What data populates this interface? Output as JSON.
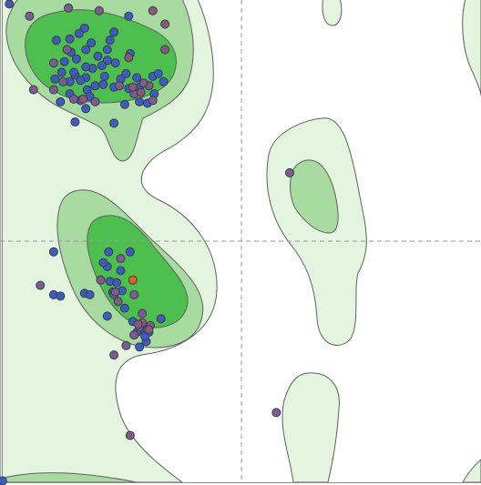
{
  "chart_data": {
    "type": "scatter",
    "title": "",
    "xlabel": "",
    "ylabel": "",
    "xlim": [
      -180,
      180
    ],
    "ylim": [
      -180,
      180
    ],
    "grid": false,
    "reference_lines": {
      "x": 0,
      "y": 0
    },
    "colors": {
      "background": "#ffffff",
      "allowed_region": "#e3f4df",
      "favoured_region": "#a7dba0",
      "core_region": "#4cbf4f",
      "contour_line": "#606060",
      "reference_line": "#9a9a9a",
      "point_blue": "#3c5dbf",
      "point_purple": "#7d5c8f",
      "point_mauve": "#8a5878",
      "point_orange": "#e0602a"
    },
    "series": [
      {
        "color": "point_blue",
        "points": [
          [
            -173,
            177
          ],
          [
            -84,
            168
          ],
          [
            -117,
            159
          ],
          [
            -95,
            156
          ],
          [
            -121,
            155
          ],
          [
            -128,
            151
          ],
          [
            -112,
            148
          ],
          [
            -138,
            150
          ],
          [
            -127,
            141
          ],
          [
            -116,
            143
          ],
          [
            -107,
            138
          ],
          [
            -111,
            129
          ],
          [
            -123,
            136
          ],
          [
            -100,
            135
          ],
          [
            -104,
            131
          ],
          [
            -116,
            130
          ],
          [
            -132,
            134
          ],
          [
            -124,
            124
          ],
          [
            -116,
            122
          ],
          [
            -102,
            123
          ],
          [
            -103,
            117
          ],
          [
            -120,
            120
          ],
          [
            -128,
            119
          ],
          [
            -139,
            121
          ],
          [
            -134,
            126
          ],
          [
            -115,
            113
          ],
          [
            -109,
            116
          ],
          [
            -95,
            115
          ],
          [
            -90,
            121
          ],
          [
            -94,
            133
          ],
          [
            -83,
            140
          ],
          [
            -86,
            125
          ],
          [
            -84,
            114
          ],
          [
            -76,
            115
          ],
          [
            -78,
            122
          ],
          [
            -69,
            116
          ],
          [
            -66,
            123
          ],
          [
            -62,
            125
          ],
          [
            -58,
            119
          ],
          [
            -70,
            103
          ],
          [
            -87,
            102
          ],
          [
            -113,
            108
          ],
          [
            -120,
            105
          ],
          [
            -116,
            99
          ],
          [
            -124,
            89
          ],
          [
            -95,
            88
          ],
          [
            -135,
            104
          ],
          [
            -128,
            110
          ],
          [
            -125,
            126
          ],
          [
            -100,
            143
          ],
          [
            -98,
            150
          ],
          [
            -140,
            -40
          ],
          [
            -135,
            -41
          ],
          [
            -100,
            -19
          ],
          [
            -98,
            -30
          ],
          [
            -103,
            -16
          ],
          [
            -90,
            -22
          ],
          [
            -93,
            -31
          ],
          [
            -89,
            -37
          ],
          [
            -87,
            -50
          ],
          [
            -96,
            -38
          ],
          [
            -100,
            -56
          ],
          [
            -69,
            -68
          ],
          [
            -81,
            -60
          ],
          [
            -71,
            -75
          ],
          [
            -80,
            -70
          ],
          [
            -74,
            -66
          ],
          [
            -72,
            -71
          ],
          [
            -76,
            -79
          ],
          [
            -78,
            -68
          ],
          [
            -117,
            -39
          ],
          [
            -140,
            -8
          ],
          [
            -99,
            -8
          ],
          [
            -83,
            -8
          ],
          [
            -113,
            -40
          ],
          [
            -60,
            -58
          ],
          [
            -70,
            -66
          ],
          [
            -178,
            -179
          ],
          [
            -65,
            110
          ],
          [
            -76,
            104
          ]
        ]
      },
      {
        "color": "point_purple",
        "points": [
          [
            -158,
            168
          ],
          [
            -129,
            174
          ],
          [
            -106,
            172
          ],
          [
            -140,
            133
          ],
          [
            -130,
            143
          ],
          [
            -155,
            113
          ],
          [
            -125,
            106
          ],
          [
            -150,
            -33
          ],
          [
            -90,
            -13
          ],
          [
            -95,
            -40
          ],
          [
            -105,
            -29
          ],
          [
            -80,
            -40
          ],
          [
            -92,
            -45
          ],
          [
            -94,
            -38
          ],
          [
            -68,
            -63
          ],
          [
            -74,
            -54
          ],
          [
            -80,
            -70
          ],
          [
            -95,
            -85
          ],
          [
            -86,
            -78
          ],
          [
            -76,
            -64
          ],
          [
            -66,
            105
          ],
          [
            -69,
            116
          ],
          [
            -73,
            118
          ],
          [
            -91,
            116
          ],
          [
            -80,
            110
          ],
          [
            -133,
            119
          ],
          [
            -140,
            113
          ],
          [
            -109,
            104
          ],
          [
            36,
            51
          ],
          [
            26,
            -128
          ]
        ]
      },
      {
        "color": "point_mauve",
        "points": [
          [
            -66,
            172
          ],
          [
            -57,
            162
          ],
          [
            -57,
            143
          ],
          [
            -75,
            111
          ],
          [
            -118,
            106
          ],
          [
            -81,
            115
          ],
          [
            -84,
            137
          ],
          [
            -83,
            -145
          ],
          [
            -69,
            -66
          ],
          [
            -74,
            -61
          ],
          [
            -77,
            -62
          ]
        ]
      },
      {
        "color": "point_orange",
        "points": [
          [
            -81,
            -29
          ]
        ]
      }
    ]
  }
}
